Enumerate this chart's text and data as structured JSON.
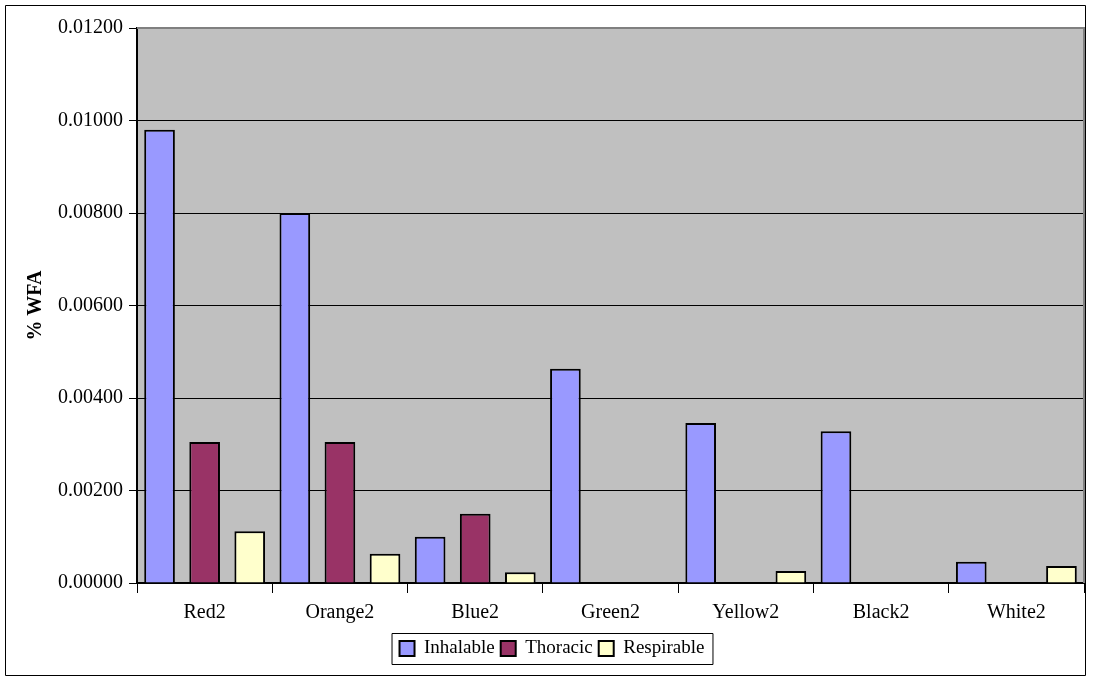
{
  "chart_data": {
    "type": "bar",
    "ylabel": "% WFA",
    "categories": [
      "Red2",
      "Orange2",
      "Blue2",
      "Green2",
      "Yellow2",
      "Black2",
      "White2"
    ],
    "series": [
      {
        "name": "Inhalable",
        "color": "#9999ff",
        "values": [
          0.0098,
          0.008,
          0.001,
          0.00463,
          0.00346,
          0.00328,
          0.00046
        ]
      },
      {
        "name": "Thoracic",
        "color": "#993366",
        "values": [
          0.00305,
          0.00305,
          0.0015,
          null,
          null,
          null,
          null
        ]
      },
      {
        "name": "Respirable",
        "color": "#ffffcc",
        "values": [
          0.00112,
          0.00063,
          0.00023,
          null,
          0.00026,
          null,
          0.00037
        ]
      }
    ],
    "ylim": [
      0,
      0.012
    ],
    "yticks": [
      {
        "value": 0,
        "label": "0.00000"
      },
      {
        "value": 0.002,
        "label": "0.00200"
      },
      {
        "value": 0.004,
        "label": "0.00400"
      },
      {
        "value": 0.006,
        "label": "0.00600"
      },
      {
        "value": 0.008,
        "label": "0.00800"
      },
      {
        "value": 0.01,
        "label": "0.01000"
      },
      {
        "value": 0.012,
        "label": "0.01200"
      }
    ],
    "grid": "y",
    "legend": "bottom"
  }
}
